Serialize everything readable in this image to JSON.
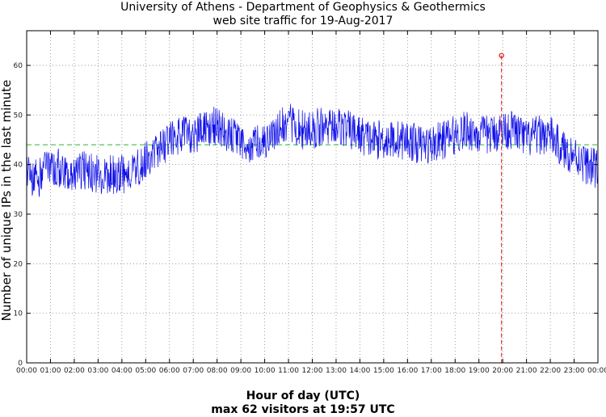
{
  "chart_data": {
    "type": "line",
    "title": "University of Athens - Department of Geophysics & Geothermics",
    "subtitle": "web site traffic for 19-Aug-2017",
    "xlabel": "Hour of day (UTC)",
    "xlabel_note": "max 62 visitors at 19:57 UTC",
    "ylabel": "Number of unique IPs in the last minute",
    "x_tick_labels": [
      "00:00",
      "01:00",
      "02:00",
      "03:00",
      "04:00",
      "05:00",
      "06:00",
      "07:00",
      "08:00",
      "09:00",
      "10:00",
      "11:00",
      "12:00",
      "13:00",
      "14:00",
      "15:00",
      "16:00",
      "17:00",
      "18:00",
      "19:00",
      "20:00",
      "21:00",
      "22:00",
      "23:00",
      "00:00"
    ],
    "y_tick_labels": [
      "0",
      "10",
      "20",
      "30",
      "40",
      "50",
      "60"
    ],
    "xlim": [
      0,
      24
    ],
    "ylim": [
      0,
      67
    ],
    "grid": true,
    "average_line": {
      "y": 44,
      "color": "#2bb52b"
    },
    "max_marker": {
      "x": 19.95,
      "y": 62,
      "color": "#e01010"
    },
    "series": [
      {
        "color": "#1010e8",
        "x": [
          0,
          0.5,
          1,
          1.5,
          2,
          2.5,
          3,
          3.5,
          4,
          4.5,
          5,
          5.5,
          6,
          6.5,
          7,
          7.5,
          8,
          8.5,
          9,
          9.5,
          10,
          10.5,
          11,
          11.5,
          12,
          12.5,
          13,
          13.5,
          14,
          14.5,
          15,
          15.5,
          16,
          16.5,
          17,
          17.5,
          18,
          18.5,
          19,
          19.5,
          20,
          20.5,
          21,
          21.5,
          22,
          22.5,
          23,
          23.5,
          24
        ],
        "values": [
          38,
          37,
          40,
          39,
          38,
          39,
          38,
          38,
          38,
          39,
          41,
          43,
          45,
          46,
          46,
          47,
          48,
          46,
          44,
          44,
          45,
          47,
          49,
          47,
          47,
          48,
          48,
          47,
          46,
          45,
          45,
          45,
          45,
          44,
          44,
          45,
          46,
          47,
          46,
          46,
          47,
          47,
          45,
          46,
          46,
          43,
          42,
          40,
          39
        ],
        "noise": 4
      }
    ]
  }
}
